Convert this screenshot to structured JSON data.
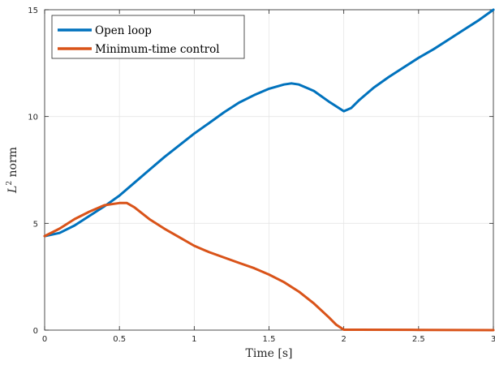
{
  "chart_data": {
    "type": "line",
    "xlabel": "Time [s]",
    "ylabel_main": "L",
    "ylabel_sup": "2",
    "ylabel_rest": " norm",
    "xlim": [
      0,
      3
    ],
    "ylim": [
      0,
      15
    ],
    "xticks": [
      0,
      0.5,
      1,
      1.5,
      2,
      2.5,
      3
    ],
    "xtick_labels": [
      "0",
      "0.5",
      "1",
      "1.5",
      "2",
      "2.5",
      "3"
    ],
    "yticks": [
      0,
      5,
      10,
      15
    ],
    "ytick_labels": [
      "0",
      "5",
      "10",
      "15"
    ],
    "grid": true,
    "legend_position": "top-left",
    "series": [
      {
        "name": "Open loop",
        "color": "#0072BD",
        "x": [
          0,
          0.1,
          0.2,
          0.3,
          0.4,
          0.5,
          0.6,
          0.7,
          0.8,
          0.9,
          1.0,
          1.1,
          1.2,
          1.3,
          1.4,
          1.5,
          1.6,
          1.65,
          1.7,
          1.8,
          1.9,
          2.0,
          2.05,
          2.1,
          2.2,
          2.3,
          2.4,
          2.5,
          2.6,
          2.7,
          2.8,
          2.9,
          3.0
        ],
        "y": [
          4.4,
          4.55,
          4.9,
          5.35,
          5.8,
          6.3,
          6.9,
          7.5,
          8.1,
          8.65,
          9.2,
          9.7,
          10.2,
          10.65,
          11.0,
          11.3,
          11.5,
          11.55,
          11.5,
          11.2,
          10.7,
          10.25,
          10.4,
          10.75,
          11.35,
          11.85,
          12.3,
          12.75,
          13.15,
          13.6,
          14.05,
          14.5,
          15.0
        ]
      },
      {
        "name": "Minimum-time control",
        "color": "#D95319",
        "x": [
          0,
          0.1,
          0.2,
          0.3,
          0.4,
          0.5,
          0.55,
          0.6,
          0.7,
          0.8,
          0.9,
          1.0,
          1.1,
          1.2,
          1.3,
          1.4,
          1.5,
          1.6,
          1.7,
          1.8,
          1.9,
          1.95,
          2.0,
          2.1,
          2.5,
          3.0
        ],
        "y": [
          4.4,
          4.75,
          5.2,
          5.55,
          5.85,
          5.95,
          5.95,
          5.75,
          5.2,
          4.75,
          4.35,
          3.95,
          3.65,
          3.4,
          3.15,
          2.9,
          2.6,
          2.25,
          1.8,
          1.25,
          0.6,
          0.25,
          0.02,
          0.02,
          0.01,
          0.0
        ]
      }
    ]
  }
}
